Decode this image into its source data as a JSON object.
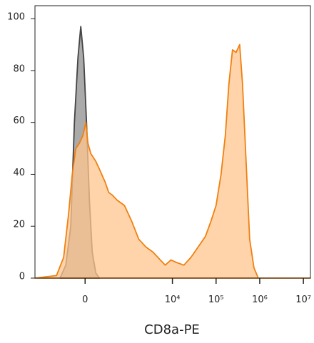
{
  "chart_data": {
    "type": "area",
    "x_label": "CD8a-PE",
    "x_scale": "asinh",
    "xlim": [
      -1400,
      14500000
    ],
    "xticks": [
      0,
      {
        "value": 10000,
        "label": "10⁴"
      },
      {
        "value": 100000,
        "label": "10⁵"
      },
      {
        "value": 1000000,
        "label": "10⁶"
      },
      {
        "value": 10000000,
        "label": "10⁷"
      }
    ],
    "ylim": [
      0,
      105
    ],
    "yticks": [
      0,
      20,
      40,
      60,
      80,
      100
    ],
    "series": [
      {
        "color": "#444444",
        "fill": "#aaaaaa",
        "x": [
          -348,
          -241,
          -166,
          -119,
          -77,
          -46,
          -15,
          15,
          46,
          77,
          119,
          166
        ],
        "values": [
          0,
          5,
          20,
          60,
          85,
          97,
          85,
          60,
          30,
          10,
          2,
          0
        ]
      },
      {
        "color": "#f08010",
        "fill": "#ffc58e",
        "x": [
          -1400,
          -430,
          -278,
          -196,
          -146,
          -102,
          -61,
          -23,
          8,
          30,
          61,
          119,
          166,
          253,
          319,
          396,
          528,
          784,
          1154,
          1690,
          2470,
          3600,
          5260,
          6840,
          9260,
          12500,
          18300,
          26600,
          38800,
          56700,
          76700,
          99900,
          130000,
          163000,
          197000,
          238000,
          287000,
          347000,
          403000,
          487000,
          588000,
          737000,
          925000,
          14500000
        ],
        "values": [
          0,
          1,
          8,
          25,
          40,
          50,
          52,
          55,
          60,
          52,
          48,
          45,
          42,
          37,
          33,
          32,
          30,
          28,
          22,
          15,
          12,
          10,
          7,
          5,
          7,
          6,
          5,
          8,
          12,
          16,
          22,
          28,
          40,
          55,
          75,
          88,
          87,
          90,
          75,
          45,
          15,
          4,
          0,
          0
        ]
      }
    ]
  }
}
